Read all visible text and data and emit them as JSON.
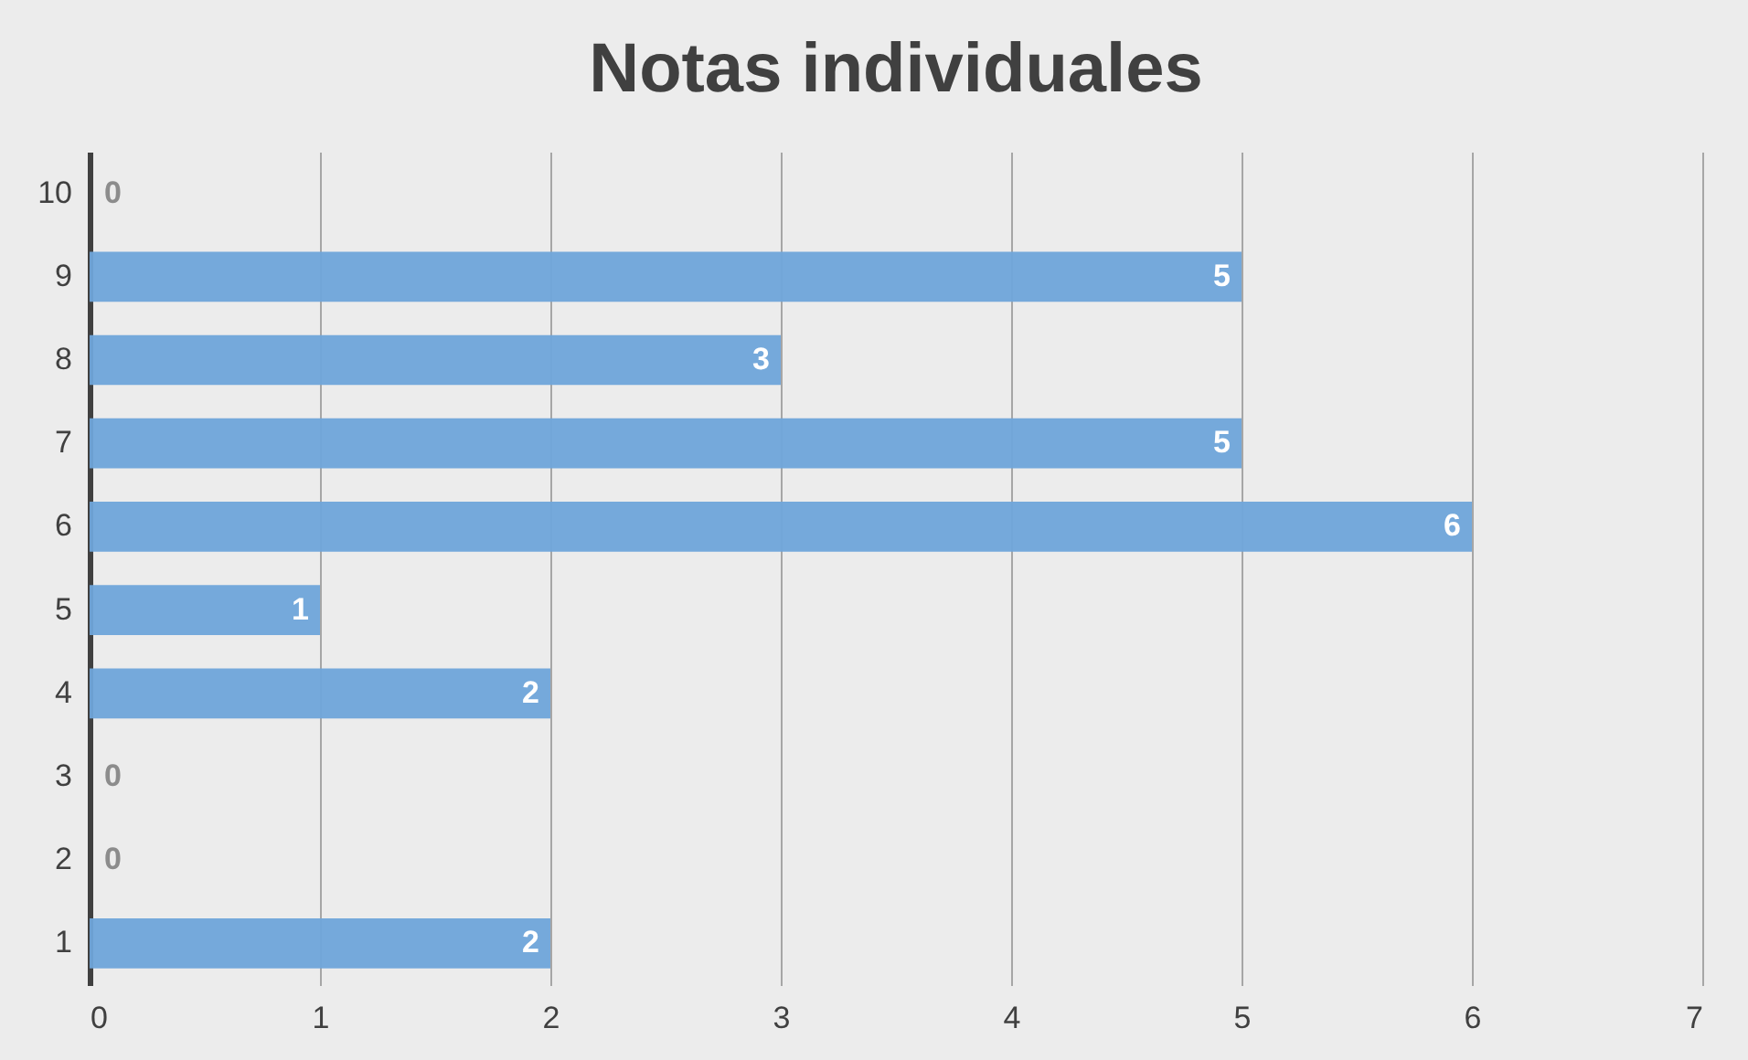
{
  "chart_data": {
    "type": "bar",
    "orientation": "horizontal",
    "title": "Notas individuales",
    "categories": [
      "10",
      "9",
      "8",
      "7",
      "6",
      "5",
      "4",
      "3",
      "2",
      "1"
    ],
    "values": [
      0,
      5,
      3,
      5,
      6,
      1,
      2,
      0,
      0,
      2
    ],
    "color": "#6fa5da",
    "xlim": [
      0,
      7
    ],
    "xticks": [
      0,
      1,
      2,
      3,
      4,
      5,
      6,
      7
    ],
    "grid": "x",
    "data_labels": true
  }
}
